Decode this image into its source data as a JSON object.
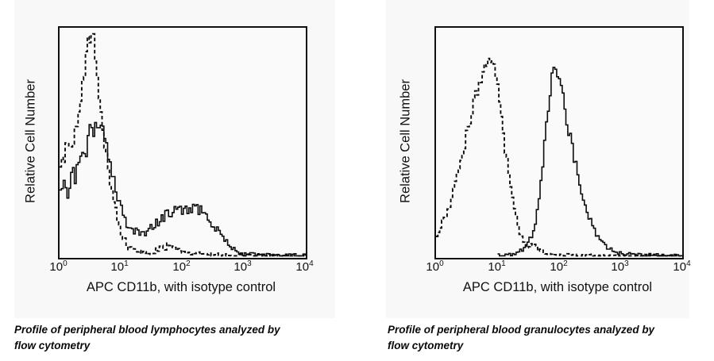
{
  "page": {
    "background": "#ffffff",
    "figure_background": "#f8f8f8",
    "curve_color": "#000000"
  },
  "chart_data": [
    {
      "type": "line",
      "subtype": "flow-cytometry-histogram",
      "title": "Profile of peripheral blood lymphocytes analyzed by flow cytometry",
      "xlabel": "APC CD11b, with isotype control",
      "ylabel": "Relative Cell Number",
      "x_scale": "log10",
      "xlim": [
        1,
        10000
      ],
      "ylim": [
        0,
        1
      ],
      "grid": false,
      "legend": null,
      "x_ticks": [
        {
          "base": "10",
          "exp": "0"
        },
        {
          "base": "10",
          "exp": "1"
        },
        {
          "base": "10",
          "exp": "2"
        },
        {
          "base": "10",
          "exp": "3"
        },
        {
          "base": "10",
          "exp": "4"
        }
      ],
      "noise": {
        "seed": 9,
        "step_log10": 0.03,
        "series_amp": [
          0.05,
          0.05
        ]
      },
      "series": [
        {
          "name": "isotype control",
          "line_style": "dashed",
          "color": "#000000",
          "points_log10x_yfrac": [
            [
              0,
              0.4
            ],
            [
              0.07,
              0.45
            ],
            [
              0.13,
              0.52
            ],
            [
              0.19,
              0.48
            ],
            [
              0.25,
              0.56
            ],
            [
              0.31,
              0.68
            ],
            [
              0.36,
              0.78
            ],
            [
              0.41,
              0.88
            ],
            [
              0.45,
              0.96
            ],
            [
              0.49,
              0.91
            ],
            [
              0.53,
              0.97
            ],
            [
              0.57,
              0.9
            ],
            [
              0.61,
              0.78
            ],
            [
              0.65,
              0.66
            ],
            [
              0.7,
              0.53
            ],
            [
              0.75,
              0.42
            ],
            [
              0.8,
              0.33
            ],
            [
              0.86,
              0.25
            ],
            [
              0.93,
              0.16
            ],
            [
              1.0,
              0.09
            ],
            [
              1.08,
              0.05
            ],
            [
              1.16,
              0.03
            ],
            [
              1.3,
              0.015
            ],
            [
              1.45,
              0.01
            ],
            [
              1.6,
              0.03
            ],
            [
              1.75,
              0.045
            ],
            [
              1.9,
              0.025
            ],
            [
              2.1,
              0.012
            ],
            [
              2.4,
              0.006
            ],
            [
              2.8,
              0.004
            ],
            [
              3.2,
              0.003
            ],
            [
              4.0,
              0.002
            ]
          ]
        },
        {
          "name": "APC CD11b",
          "line_style": "solid",
          "color": "#000000",
          "points_log10x_yfrac": [
            [
              0,
              0.27
            ],
            [
              0.06,
              0.33
            ],
            [
              0.12,
              0.28
            ],
            [
              0.18,
              0.38
            ],
            [
              0.24,
              0.34
            ],
            [
              0.3,
              0.43
            ],
            [
              0.36,
              0.5
            ],
            [
              0.42,
              0.47
            ],
            [
              0.47,
              0.54
            ],
            [
              0.52,
              0.58
            ],
            [
              0.56,
              0.54
            ],
            [
              0.6,
              0.6
            ],
            [
              0.64,
              0.55
            ],
            [
              0.68,
              0.57
            ],
            [
              0.73,
              0.5
            ],
            [
              0.78,
              0.44
            ],
            [
              0.84,
              0.37
            ],
            [
              0.9,
              0.3
            ],
            [
              0.97,
              0.23
            ],
            [
              1.04,
              0.17
            ],
            [
              1.12,
              0.13
            ],
            [
              1.22,
              0.105
            ],
            [
              1.32,
              0.1
            ],
            [
              1.42,
              0.115
            ],
            [
              1.52,
              0.135
            ],
            [
              1.62,
              0.16
            ],
            [
              1.72,
              0.18
            ],
            [
              1.82,
              0.195
            ],
            [
              1.92,
              0.21
            ],
            [
              2.02,
              0.2
            ],
            [
              2.12,
              0.22
            ],
            [
              2.22,
              0.21
            ],
            [
              2.32,
              0.195
            ],
            [
              2.42,
              0.165
            ],
            [
              2.52,
              0.13
            ],
            [
              2.62,
              0.09
            ],
            [
              2.72,
              0.055
            ],
            [
              2.82,
              0.03
            ],
            [
              2.92,
              0.016
            ],
            [
              3.02,
              0.008
            ],
            [
              3.2,
              0.004
            ],
            [
              3.6,
              0.003
            ],
            [
              4.0,
              0.002
            ]
          ]
        }
      ]
    },
    {
      "type": "line",
      "subtype": "flow-cytometry-histogram",
      "title": "Profile of peripheral blood granulocytes analyzed by flow cytometry",
      "xlabel": "APC CD11b, with isotype control",
      "ylabel": "Relative Cell Number",
      "x_scale": "log10",
      "xlim": [
        1,
        10000
      ],
      "ylim": [
        0,
        1
      ],
      "grid": false,
      "legend": null,
      "x_ticks": [
        {
          "base": "10",
          "exp": "0"
        },
        {
          "base": "10",
          "exp": "1"
        },
        {
          "base": "10",
          "exp": "2"
        },
        {
          "base": "10",
          "exp": "3"
        },
        {
          "base": "10",
          "exp": "4"
        }
      ],
      "noise": {
        "seed": 4,
        "step_log10": 0.03,
        "series_amp": [
          0.032,
          0.038
        ]
      },
      "series": [
        {
          "name": "isotype control",
          "line_style": "dashed",
          "color": "#000000",
          "points_log10x_yfrac": [
            [
              0,
              0.1
            ],
            [
              0.08,
              0.14
            ],
            [
              0.16,
              0.19
            ],
            [
              0.24,
              0.26
            ],
            [
              0.32,
              0.34
            ],
            [
              0.4,
              0.44
            ],
            [
              0.48,
              0.54
            ],
            [
              0.56,
              0.63
            ],
            [
              0.64,
              0.72
            ],
            [
              0.72,
              0.8
            ],
            [
              0.79,
              0.85
            ],
            [
              0.85,
              0.89
            ],
            [
              0.91,
              0.86
            ],
            [
              0.97,
              0.77
            ],
            [
              1.03,
              0.65
            ],
            [
              1.09,
              0.52
            ],
            [
              1.15,
              0.4
            ],
            [
              1.21,
              0.29
            ],
            [
              1.27,
              0.19
            ],
            [
              1.33,
              0.12
            ],
            [
              1.4,
              0.07
            ],
            [
              1.48,
              0.045
            ],
            [
              1.56,
              0.055
            ],
            [
              1.64,
              0.035
            ],
            [
              1.74,
              0.018
            ],
            [
              1.88,
              0.01
            ],
            [
              2.05,
              0.006
            ],
            [
              2.4,
              0.004
            ],
            [
              3.0,
              0.003
            ],
            [
              3.6,
              0.002
            ],
            [
              4.0,
              0.002
            ]
          ]
        },
        {
          "name": "APC CD11b",
          "line_style": "solid",
          "color": "#000000",
          "points_log10x_yfrac": [
            [
              1.0,
              0.004
            ],
            [
              1.15,
              0.006
            ],
            [
              1.28,
              0.012
            ],
            [
              1.38,
              0.025
            ],
            [
              1.46,
              0.05
            ],
            [
              1.54,
              0.09
            ],
            [
              1.61,
              0.16
            ],
            [
              1.67,
              0.27
            ],
            [
              1.72,
              0.4
            ],
            [
              1.77,
              0.54
            ],
            [
              1.82,
              0.68
            ],
            [
              1.87,
              0.79
            ],
            [
              1.91,
              0.87
            ],
            [
              1.95,
              0.79
            ],
            [
              1.99,
              0.82
            ],
            [
              2.04,
              0.7
            ],
            [
              2.09,
              0.64
            ],
            [
              2.14,
              0.56
            ],
            [
              2.19,
              0.49
            ],
            [
              2.25,
              0.41
            ],
            [
              2.31,
              0.33
            ],
            [
              2.38,
              0.255
            ],
            [
              2.45,
              0.19
            ],
            [
              2.52,
              0.135
            ],
            [
              2.6,
              0.09
            ],
            [
              2.68,
              0.06
            ],
            [
              2.76,
              0.04
            ],
            [
              2.85,
              0.025
            ],
            [
              2.95,
              0.015
            ],
            [
              3.1,
              0.009
            ],
            [
              3.3,
              0.006
            ],
            [
              3.6,
              0.004
            ],
            [
              4.0,
              0.003
            ]
          ]
        }
      ]
    }
  ]
}
